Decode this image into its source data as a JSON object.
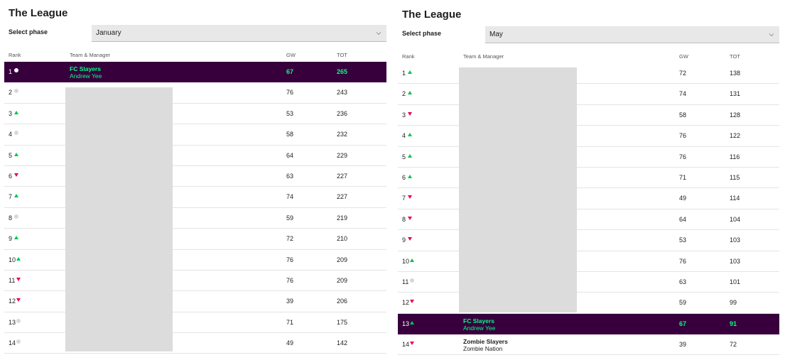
{
  "left": {
    "title": "The League",
    "phase_label": "Select phase",
    "phase_value": "January",
    "headers": {
      "rank": "Rank",
      "team": "Team & Manager",
      "gw": "GW",
      "tot": "TOT"
    },
    "rows": [
      {
        "rank": "1",
        "move": "same",
        "team": "FC Slayers",
        "manager": "Andrew Yee",
        "gw": "67",
        "tot": "265",
        "highlight": true
      },
      {
        "rank": "2",
        "move": "same",
        "team": "",
        "manager": "",
        "gw": "76",
        "tot": "243"
      },
      {
        "rank": "3",
        "move": "up",
        "team": "",
        "manager": "",
        "gw": "53",
        "tot": "236"
      },
      {
        "rank": "4",
        "move": "same",
        "team": "",
        "manager": "",
        "gw": "58",
        "tot": "232"
      },
      {
        "rank": "5",
        "move": "up",
        "team": "",
        "manager": "",
        "gw": "64",
        "tot": "229"
      },
      {
        "rank": "6",
        "move": "down",
        "team": "",
        "manager": "",
        "gw": "63",
        "tot": "227"
      },
      {
        "rank": "7",
        "move": "up",
        "team": "",
        "manager": "",
        "gw": "74",
        "tot": "227"
      },
      {
        "rank": "8",
        "move": "same",
        "team": "",
        "manager": "",
        "gw": "59",
        "tot": "219"
      },
      {
        "rank": "9",
        "move": "up",
        "team": "",
        "manager": "",
        "gw": "72",
        "tot": "210"
      },
      {
        "rank": "10",
        "move": "up",
        "team": "",
        "manager": "",
        "gw": "76",
        "tot": "209"
      },
      {
        "rank": "11",
        "move": "down",
        "team": "",
        "manager": "",
        "gw": "76",
        "tot": "209"
      },
      {
        "rank": "12",
        "move": "down",
        "team": "",
        "manager": "",
        "gw": "39",
        "tot": "206"
      },
      {
        "rank": "13",
        "move": "same",
        "team": "",
        "manager": "",
        "gw": "71",
        "tot": "175"
      },
      {
        "rank": "14",
        "move": "same",
        "team": "",
        "manager": "",
        "gw": "49",
        "tot": "142"
      }
    ]
  },
  "right": {
    "title": "The League",
    "phase_label": "Select phase",
    "phase_value": "May",
    "headers": {
      "rank": "Rank",
      "team": "Team & Manager",
      "gw": "GW",
      "tot": "TOT"
    },
    "rows": [
      {
        "rank": "1",
        "move": "up",
        "team": "",
        "manager": "",
        "gw": "72",
        "tot": "138"
      },
      {
        "rank": "2",
        "move": "up",
        "team": "",
        "manager": "",
        "gw": "74",
        "tot": "131"
      },
      {
        "rank": "3",
        "move": "down",
        "team": "",
        "manager": "",
        "gw": "58",
        "tot": "128"
      },
      {
        "rank": "4",
        "move": "up",
        "team": "",
        "manager": "",
        "gw": "76",
        "tot": "122"
      },
      {
        "rank": "5",
        "move": "up",
        "team": "",
        "manager": "",
        "gw": "76",
        "tot": "116"
      },
      {
        "rank": "6",
        "move": "up",
        "team": "",
        "manager": "",
        "gw": "71",
        "tot": "115"
      },
      {
        "rank": "7",
        "move": "down",
        "team": "",
        "manager": "",
        "gw": "49",
        "tot": "114"
      },
      {
        "rank": "8",
        "move": "down",
        "team": "",
        "manager": "",
        "gw": "64",
        "tot": "104"
      },
      {
        "rank": "9",
        "move": "down",
        "team": "",
        "manager": "",
        "gw": "53",
        "tot": "103"
      },
      {
        "rank": "10",
        "move": "up",
        "team": "",
        "manager": "",
        "gw": "76",
        "tot": "103"
      },
      {
        "rank": "11",
        "move": "same",
        "team": "",
        "manager": "",
        "gw": "63",
        "tot": "101"
      },
      {
        "rank": "12",
        "move": "down",
        "team": "",
        "manager": "",
        "gw": "59",
        "tot": "99"
      },
      {
        "rank": "13",
        "move": "up",
        "team": "FC Slayers",
        "manager": "Andrew Yee",
        "gw": "67",
        "tot": "91",
        "highlight": true
      },
      {
        "rank": "14",
        "move": "down",
        "team": "Zombie Slayers",
        "manager": "Zombie Nation",
        "gw": "39",
        "tot": "72"
      }
    ]
  },
  "colors": {
    "highlight_bg": "#37003c",
    "highlight_text": "#00ff87",
    "up": "#01c454",
    "down": "#e90052",
    "same": "#d8d8d8"
  }
}
